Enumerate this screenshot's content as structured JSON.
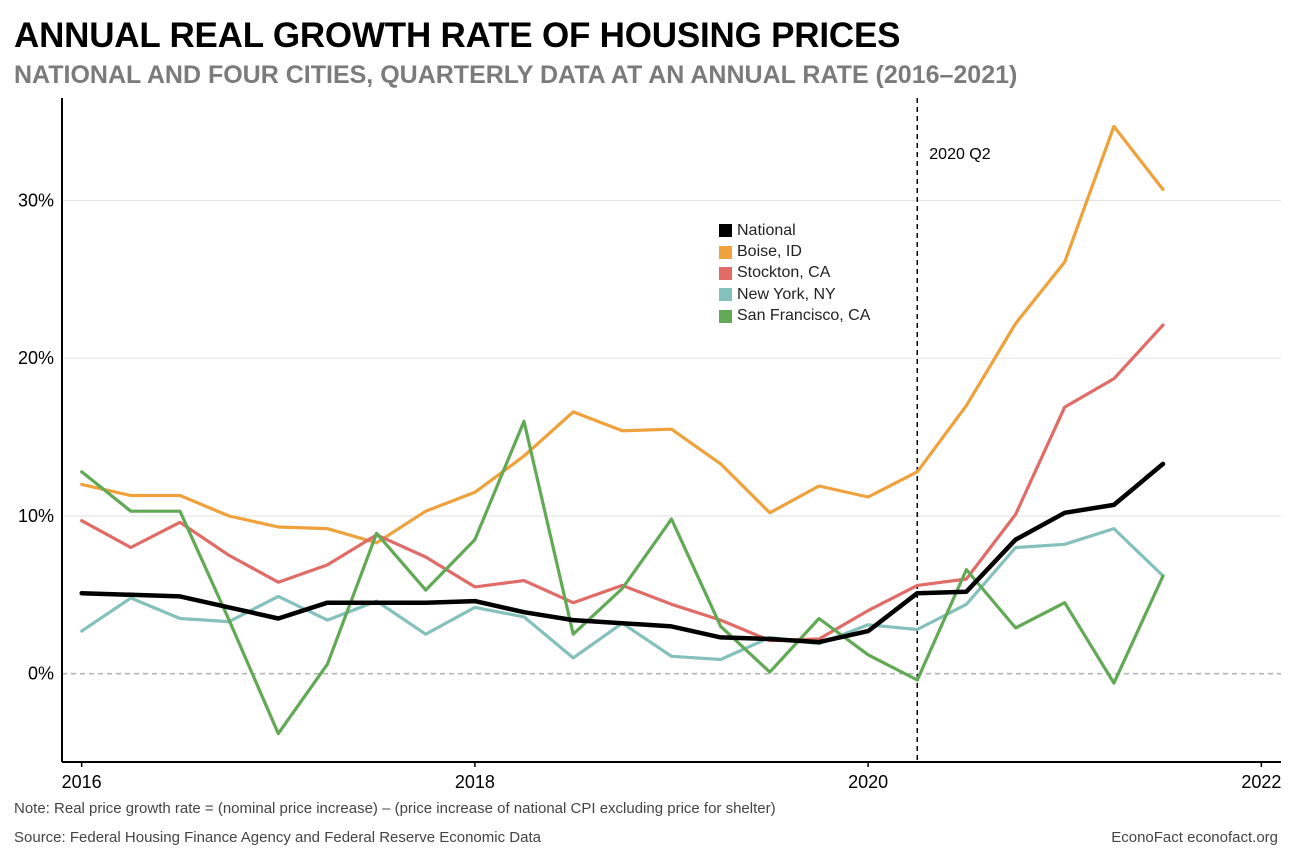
{
  "title": "ANNUAL REAL GROWTH RATE OF HOUSING PRICES",
  "subtitle": "NATIONAL AND FOUR CITIES, QUARTERLY DATA AT AN ANNUAL RATE (2016–2021)",
  "note": "Note: Real price growth rate = (nominal price increase) – (price increase of national CPI excluding price for shelter)",
  "source": "Source: Federal Housing Finance Agency and Federal Reserve Economic Data",
  "brand": "EconoFact  econofact.org",
  "chart_data": {
    "type": "line",
    "xlim": [
      2015.9,
      2022.1
    ],
    "ylim": [
      -5.6,
      36.5
    ],
    "x_ticks": [
      {
        "value": 2016,
        "label": "2016"
      },
      {
        "value": 2018,
        "label": "2018"
      },
      {
        "value": 2020,
        "label": "2020"
      },
      {
        "value": 2022,
        "label": "2022"
      }
    ],
    "y_ticks": [
      {
        "value": 0,
        "label": "0%"
      },
      {
        "value": 10,
        "label": "10%"
      },
      {
        "value": 20,
        "label": "20%"
      },
      {
        "value": 30,
        "label": "30%"
      }
    ],
    "grid": "horizontal",
    "zero_line": "dashed",
    "annotation": {
      "x": 2020.25,
      "label": "2020 Q2",
      "style": "dashed"
    },
    "legend_position": "center-top",
    "x": [
      2016.0,
      2016.25,
      2016.5,
      2016.75,
      2017.0,
      2017.25,
      2017.5,
      2017.75,
      2018.0,
      2018.25,
      2018.5,
      2018.75,
      2019.0,
      2019.25,
      2019.5,
      2019.75,
      2020.0,
      2020.25,
      2020.5,
      2020.75,
      2021.0,
      2021.25,
      2021.5
    ],
    "series": [
      {
        "name": "National",
        "color": "#000000",
        "values": [
          5.1,
          5.0,
          4.9,
          4.2,
          3.5,
          4.5,
          4.5,
          4.5,
          4.6,
          3.9,
          3.4,
          3.2,
          3.0,
          2.3,
          2.2,
          2.0,
          2.7,
          5.1,
          5.2,
          8.5,
          10.2,
          10.7,
          13.3
        ]
      },
      {
        "name": "Boise, ID",
        "color": "#efa13b",
        "values": [
          12.0,
          11.3,
          11.3,
          10.0,
          9.3,
          9.2,
          8.3,
          10.3,
          11.5,
          13.8,
          16.6,
          15.4,
          15.5,
          13.3,
          10.2,
          11.9,
          11.2,
          12.8,
          17.0,
          22.2,
          26.1,
          34.7,
          30.7
        ]
      },
      {
        "name": "Stockton, CA",
        "color": "#e06b67",
        "values": [
          9.7,
          8.0,
          9.6,
          7.5,
          5.8,
          6.9,
          8.8,
          7.4,
          5.5,
          5.9,
          4.5,
          5.6,
          4.4,
          3.4,
          2.1,
          2.2,
          4.0,
          5.6,
          6.0,
          10.1,
          16.9,
          18.7,
          22.1
        ]
      },
      {
        "name": "New York, NY",
        "color": "#84c0bc",
        "values": [
          2.7,
          4.8,
          3.5,
          3.3,
          4.9,
          3.4,
          4.6,
          2.5,
          4.2,
          3.6,
          1.0,
          3.2,
          1.1,
          0.9,
          2.3,
          1.9,
          3.1,
          2.8,
          4.4,
          8.0,
          8.2,
          9.2,
          6.2
        ]
      },
      {
        "name": "San Francisco, CA",
        "color": "#62a955",
        "values": [
          12.8,
          10.3,
          10.3,
          3.4,
          -3.8,
          0.6,
          8.9,
          5.3,
          8.5,
          16.0,
          2.5,
          5.4,
          9.8,
          3.0,
          0.1,
          3.5,
          1.2,
          -0.4,
          6.6,
          2.9,
          4.5,
          -0.6,
          6.2
        ]
      }
    ]
  }
}
